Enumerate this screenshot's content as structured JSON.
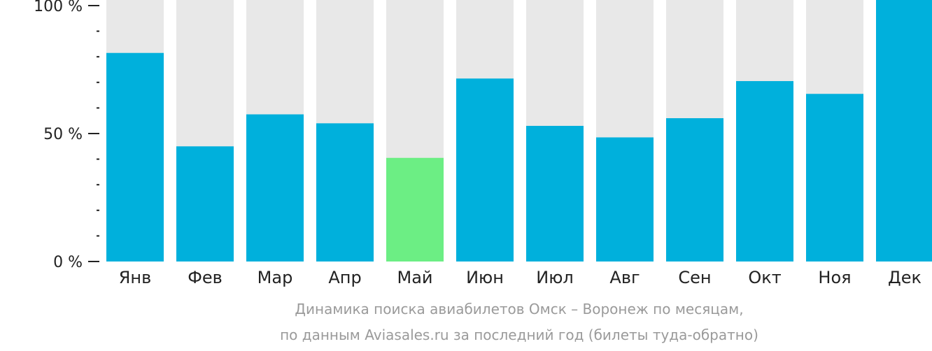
{
  "chart_data": {
    "type": "bar",
    "categories": [
      "Янв",
      "Фев",
      "Мар",
      "Апр",
      "Май",
      "Июн",
      "Июл",
      "Авг",
      "Сен",
      "Окт",
      "Ноя",
      "Дек"
    ],
    "values": [
      81.5,
      45,
      57.5,
      54,
      40.5,
      71.5,
      53,
      48.5,
      56,
      70.5,
      65.5,
      103
    ],
    "highlight_index": 4,
    "ylim": [
      0,
      100
    ],
    "ytick_values": [
      0,
      50,
      100
    ],
    "ytick_labels": [
      "0 %",
      "50 %",
      "100 %"
    ],
    "minor_tick_step": 10,
    "title": "",
    "xlabel": "",
    "ylabel": "",
    "grid": false,
    "colors": {
      "bar": "#00b0dc",
      "highlight": "#6cee84",
      "background_bar": "#e8e8e8",
      "axis": "#222222",
      "caption": "#9a9a9a"
    }
  },
  "caption": {
    "line1": "Динамика поиска авиабилетов Омск – Воронеж по месяцам,",
    "line2": "по данным Aviasales.ru за последний год (билеты туда-обратно)"
  }
}
